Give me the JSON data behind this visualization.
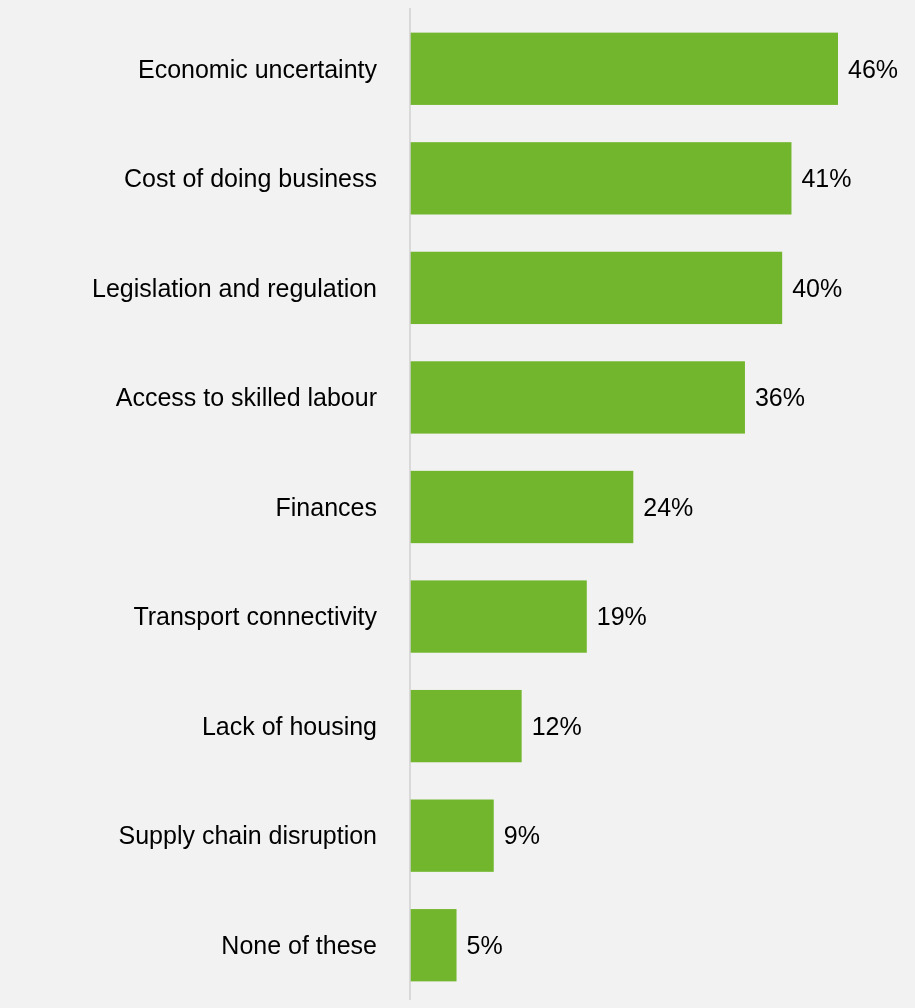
{
  "chart_data": {
    "type": "bar",
    "orientation": "horizontal",
    "categories": [
      "Economic uncertainty",
      "Cost of doing business",
      "Legislation and regulation",
      "Access to skilled labour",
      "Finances",
      "Transport connectivity",
      "Lack of housing",
      "Supply chain disruption",
      "None of these"
    ],
    "values": [
      46,
      41,
      40,
      36,
      24,
      19,
      12,
      9,
      5
    ],
    "value_labels": [
      "46%",
      "41%",
      "40%",
      "36%",
      "24%",
      "19%",
      "12%",
      "9%",
      "5%"
    ],
    "color": "#72b62d"
  }
}
